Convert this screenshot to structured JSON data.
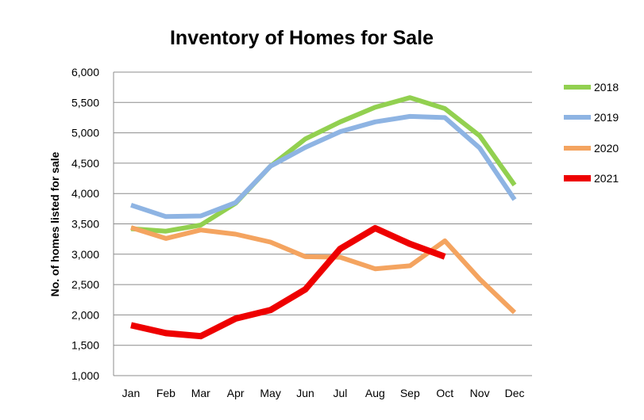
{
  "chart_data": {
    "type": "line",
    "title": "Inventory of Homes for Sale",
    "xlabel": "",
    "ylabel": "No. of homes listed for sale",
    "categories": [
      "Jan",
      "Feb",
      "Mar",
      "Apr",
      "May",
      "Jun",
      "Jul",
      "Aug",
      "Sep",
      "Oct",
      "Nov",
      "Dec"
    ],
    "ylim": [
      1000,
      6000
    ],
    "yticks": [
      1000,
      1500,
      2000,
      2500,
      3000,
      3500,
      4000,
      4500,
      5000,
      5500,
      6000
    ],
    "ytick_labels": [
      "1,000",
      "1,500",
      "2,000",
      "2,500",
      "3,000",
      "3,500",
      "4,000",
      "4,500",
      "5,000",
      "5,500",
      "6,000"
    ],
    "grid": true,
    "legend_position": "right",
    "series": [
      {
        "name": "2018",
        "color": "#92d050",
        "values": [
          3420,
          3380,
          3480,
          3840,
          4450,
          4900,
          5180,
          5420,
          5580,
          5400,
          4950,
          4140
        ]
      },
      {
        "name": "2019",
        "color": "#8eb4e3",
        "values": [
          3810,
          3620,
          3630,
          3850,
          4450,
          4760,
          5020,
          5180,
          5270,
          5250,
          4750,
          3900
        ]
      },
      {
        "name": "2020",
        "color": "#f4a460",
        "values": [
          3440,
          3260,
          3400,
          3330,
          3200,
          2960,
          2950,
          2760,
          2810,
          3220,
          2590,
          2040
        ]
      },
      {
        "name": "2021",
        "color": "#ee0000",
        "values": [
          1830,
          1700,
          1650,
          1940,
          2080,
          2420,
          3090,
          3430,
          3170,
          2960,
          null,
          null
        ]
      }
    ]
  }
}
